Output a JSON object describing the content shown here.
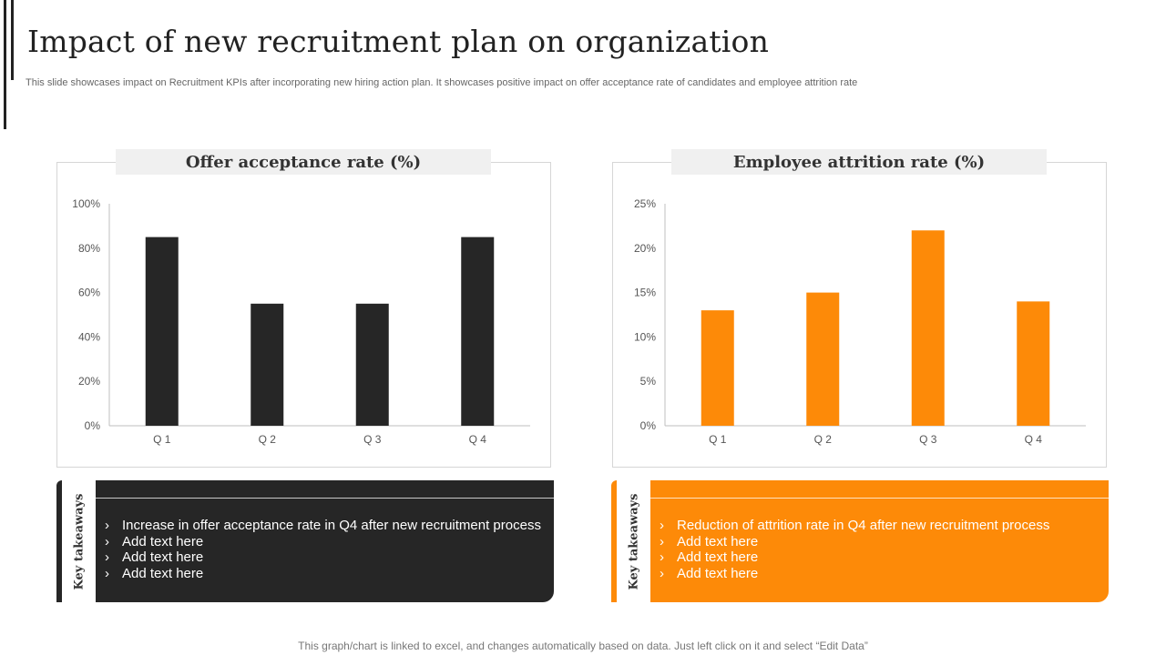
{
  "header": {
    "title": "Impact of  new recruitment plan on organization",
    "subtitle": "This slide showcases impact on Recruitment KPIs after incorporating new hiring action plan. It showcases positive impact on offer acceptance rate of candidates and employee attrition rate"
  },
  "colors": {
    "dark": "#262626",
    "orange": "#fd8a08",
    "axis": "#bfbfbf"
  },
  "chart_data": [
    {
      "type": "bar",
      "title": "Offer acceptance rate (%)",
      "categories": [
        "Q 1",
        "Q 2",
        "Q 3",
        "Q 4"
      ],
      "values": [
        85,
        55,
        55,
        85
      ],
      "ylim": [
        0,
        100
      ],
      "yticks": [
        0,
        20,
        40,
        60,
        80,
        100
      ],
      "ytick_labels": [
        "0%",
        "20%",
        "40%",
        "60%",
        "80%",
        "100%"
      ],
      "xlabel": "",
      "ylabel": "",
      "grid": false,
      "color": "#262626"
    },
    {
      "type": "bar",
      "title": "Employee attrition rate (%)",
      "categories": [
        "Q 1",
        "Q 2",
        "Q 3",
        "Q 4"
      ],
      "values": [
        13,
        15,
        22,
        14
      ],
      "ylim": [
        0,
        25
      ],
      "yticks": [
        0,
        5,
        10,
        15,
        20,
        25
      ],
      "ytick_labels": [
        "0%",
        "5%",
        "10%",
        "15%",
        "20%",
        "25%"
      ],
      "xlabel": "",
      "ylabel": "",
      "grid": false,
      "color": "#fd8a08"
    }
  ],
  "takeaways": [
    {
      "label": "Key takeaways",
      "items": [
        "Increase in offer acceptance rate in Q4 after new recruitment process",
        "Add text here",
        "Add text here",
        "Add text here"
      ]
    },
    {
      "label": "Key takeaways",
      "items": [
        "Reduction of attrition rate in Q4 after new recruitment process",
        "Add text here",
        "Add text here",
        "Add text here"
      ]
    }
  ],
  "footnote": "This graph/chart is linked to excel,  and changes automatically based on data. Just left click on it and select “Edit Data”"
}
